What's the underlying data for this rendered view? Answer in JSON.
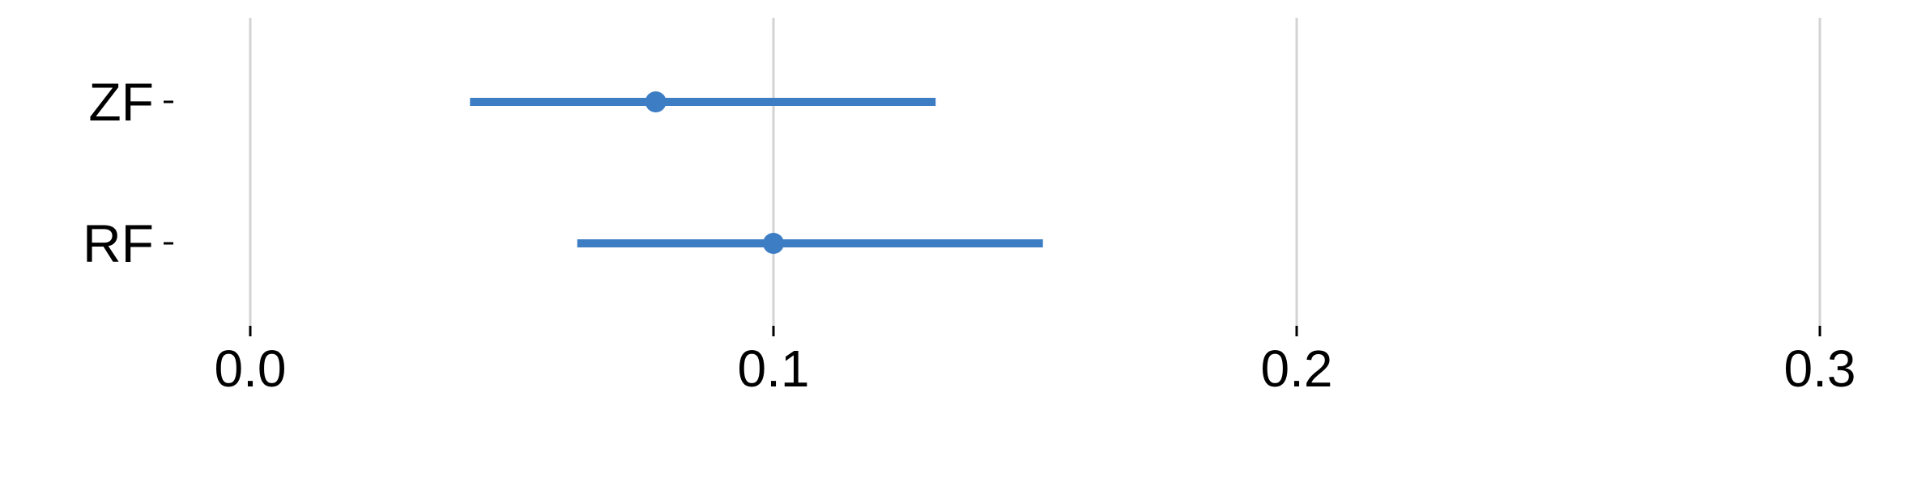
{
  "chart_data": {
    "type": "scatter",
    "subtype": "point-range",
    "title": "",
    "xlabel": "",
    "ylabel": "",
    "xlim": [
      -0.02,
      0.31
    ],
    "x_ticks": [
      0.0,
      0.1,
      0.2,
      0.3
    ],
    "x_tick_labels": [
      "0.0",
      "0.1",
      "0.2",
      "0.3"
    ],
    "categories": [
      "ZF",
      "RF"
    ],
    "series": [
      {
        "values": [
          {
            "label": "ZF",
            "estimate": 0.0775,
            "lower": 0.042,
            "upper": 0.131
          },
          {
            "label": "RF",
            "estimate": 0.1,
            "lower": 0.0625,
            "upper": 0.1515
          }
        ]
      }
    ],
    "color": "#3d7dc4",
    "grid": "vertical-major",
    "legend": "none"
  }
}
